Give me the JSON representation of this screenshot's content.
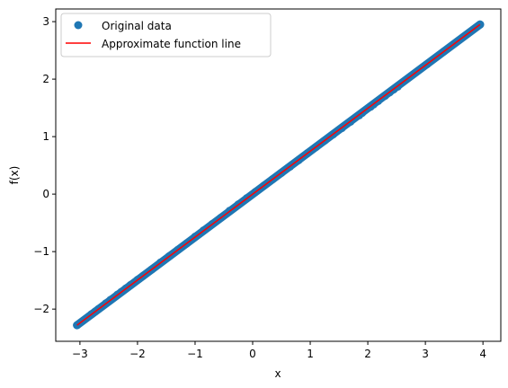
{
  "chart_data": {
    "type": "scatter",
    "title": "",
    "xlabel": "x",
    "ylabel": "f(x)",
    "xlim": [
      -3.42,
      4.31
    ],
    "ylim": [
      -2.56,
      3.22
    ],
    "xticks": [
      -3,
      -2,
      -1,
      0,
      1,
      2,
      3,
      4
    ],
    "yticks": [
      -2,
      -1,
      0,
      1,
      2,
      3
    ],
    "tick_labels": {
      "x": [
        "−3",
        "−2",
        "−1",
        "0",
        "1",
        "2",
        "3",
        "4"
      ],
      "y": [
        "−2",
        "−1",
        "0",
        "1",
        "2",
        "3"
      ]
    },
    "grid": false,
    "legend_position": "upper-left",
    "colors": {
      "points": "#1f77b4",
      "line": "#ff0000"
    },
    "series": [
      {
        "name": "Original data",
        "kind": "points",
        "x": [
          -3.05,
          -2.8,
          -2.73,
          -2.68,
          -2.55,
          -2.47,
          -2.35,
          -2.28,
          -2.2,
          -2.12,
          -2.0,
          -1.9,
          -1.75,
          -1.6,
          -1.45,
          -1.3,
          -1.15,
          -1.0,
          -0.85,
          -0.7,
          -0.55,
          -0.4,
          -0.25,
          -0.1,
          0.05,
          0.2,
          0.35,
          0.5,
          0.65,
          0.8,
          0.95,
          1.1,
          1.25,
          1.4,
          1.55,
          1.7,
          1.85,
          1.9,
          2.05,
          2.1,
          2.18,
          2.3,
          2.38,
          2.45,
          2.52,
          3.03,
          3.32,
          3.95
        ],
        "y": [
          -2.28,
          -2.09,
          -2.04,
          -2.0,
          -1.9,
          -1.84,
          -1.75,
          -1.7,
          -1.64,
          -1.58,
          -1.49,
          -1.42,
          -1.31,
          -1.19,
          -1.08,
          -0.97,
          -0.86,
          -0.74,
          -0.63,
          -0.52,
          -0.41,
          -0.29,
          -0.18,
          -0.07,
          0.04,
          0.15,
          0.26,
          0.37,
          0.48,
          0.59,
          0.71,
          0.82,
          0.93,
          1.04,
          1.15,
          1.26,
          1.37,
          1.41,
          1.52,
          1.56,
          1.62,
          1.71,
          1.77,
          1.82,
          1.87,
          2.26,
          2.48,
          2.95
        ]
      },
      {
        "name": "Approximate function line",
        "kind": "line",
        "x": [
          -3.05,
          3.95
        ],
        "y": [
          -2.28,
          2.95
        ]
      }
    ]
  }
}
